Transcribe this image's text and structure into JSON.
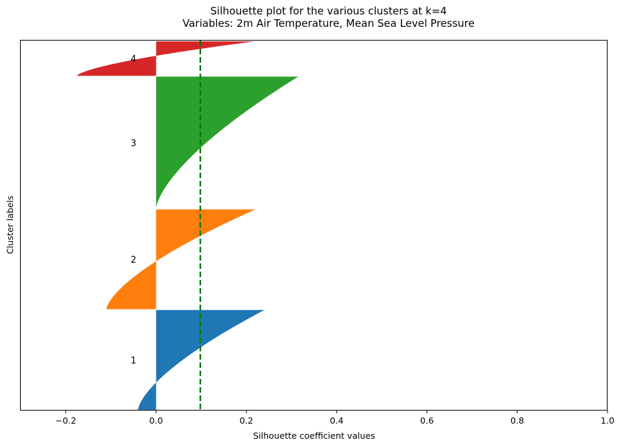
{
  "chart_data": {
    "type": "silhouette",
    "title_lines": [
      "Silhouette plot for the various clusters at k=4",
      "Variables: 2m Air Temperature, Mean Sea Level Pressure"
    ],
    "xlabel": "Silhouette coefficient values",
    "ylabel": "Cluster labels",
    "xlim": [
      -0.3,
      1.0
    ],
    "xticks": [
      -0.2,
      0.0,
      0.2,
      0.4,
      0.6,
      0.8,
      1.0
    ],
    "xtick_labels": [
      "−0.2",
      "0.0",
      "0.2",
      "0.4",
      "0.6",
      "0.8",
      "1.0"
    ],
    "yticks": [],
    "average_silhouette": 0.098,
    "average_line_color": "#007f00",
    "clusters": [
      {
        "label": "1",
        "color": "#1f77b4",
        "size": 1330,
        "min": -0.04,
        "max": 0.24
      },
      {
        "label": "2",
        "color": "#ff7f0e",
        "size": 1330,
        "min": -0.11,
        "max": 0.22
      },
      {
        "label": "3",
        "color": "#2ca02c",
        "size": 1760,
        "min": 0.0,
        "max": 0.315
      },
      {
        "label": "4",
        "color": "#d62728",
        "size": 460,
        "min": -0.175,
        "max": 0.22
      }
    ]
  }
}
